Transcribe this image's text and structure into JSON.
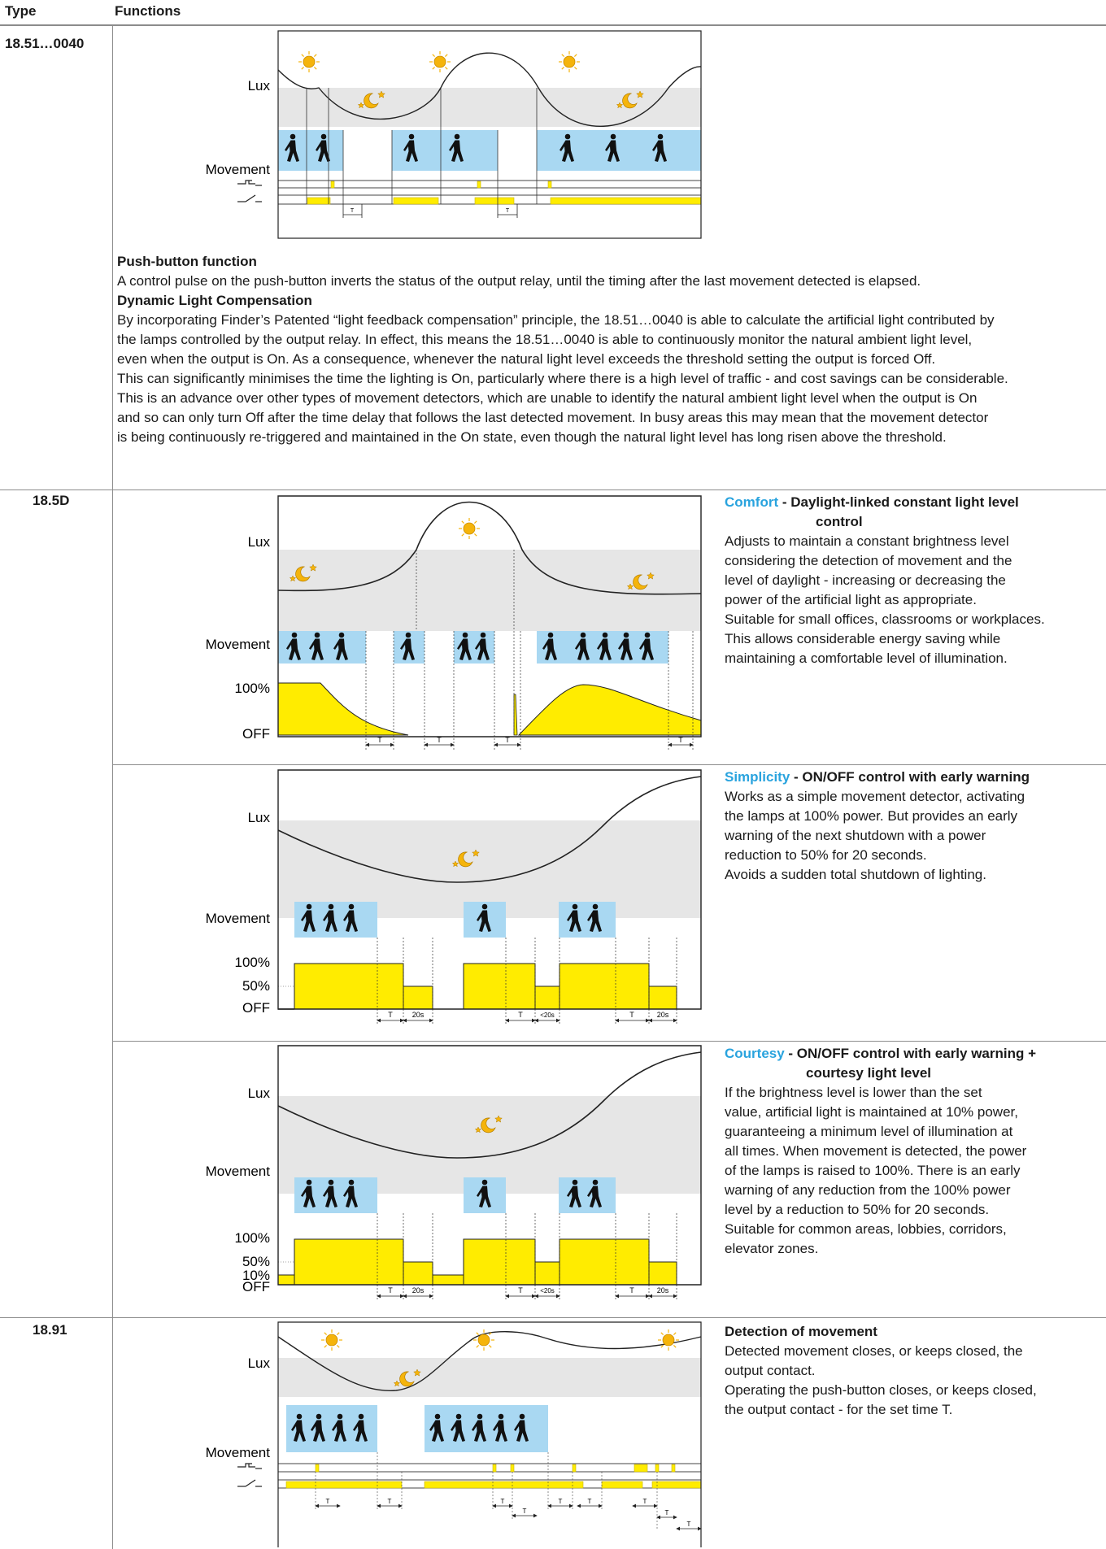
{
  "header": {
    "type_label": "Type",
    "functions_label": "Functions"
  },
  "rows": [
    {
      "type": "18.51…0040",
      "sections": [
        {
          "heading": "Push-button function",
          "body": "A control pulse on the push-button inverts the status of the output relay, until the timing after the last movement detected is elapsed."
        },
        {
          "heading": "Dynamic Light Compensation",
          "lines": [
            "By incorporating Finder’s Patented “light feedback compensation” principle, the 18.51…0040 is able to calculate the artificial light contributed by",
            "the lamps controlled by the output relay. In effect, this means the 18.51…0040 is able to continuously monitor the natural ambient light level,",
            "even when the output is On. As a consequence, whenever the natural light level exceeds the threshold setting the output is forced Off.",
            "This can significantly minimises the time the lighting is On, particularly where there is a high level of traffic - and cost savings can be considerable.",
            "This is an advance over other types of movement detectors, which are unable to identify the natural ambient light level when the output is On",
            "and so can only turn Off after the time delay that follows the last detected movement. In busy areas this may mean that the movement detector",
            "is being continuously re-triggered and maintained in the On state, even though the natural light level has long risen above the threshold."
          ]
        }
      ]
    },
    {
      "type": "18.5D",
      "modes": [
        {
          "name": "Comfort",
          "title_rest": " - Daylight-linked constant light level",
          "title_cont": "control",
          "lines": [
            "Adjusts to maintain a constant brightness level",
            "considering the detection of movement and the",
            "level of daylight - increasing or decreasing the",
            "power of the artificial light as appropriate.",
            "Suitable for small offices, classrooms or workplaces.",
            "This allows considerable energy saving while",
            "maintaining a comfortable level of illumination."
          ]
        },
        {
          "name": "Simplicity",
          "title_rest": " - ON/OFF control with early warning",
          "title_cont": "",
          "lines": [
            "Works as a simple movement detector, activating",
            "the lamps at 100% power. But provides an early",
            "warning of the next shutdown with a power",
            "reduction to 50% for 20 seconds.",
            "Avoids a sudden total shutdown of lighting."
          ]
        },
        {
          "name": "Courtesy",
          "title_rest": " - ON/OFF control with early warning +",
          "title_cont": "courtesy light level",
          "lines": [
            "If the brightness level is lower than the set",
            "value, artificial light is maintained at 10% power,",
            "guaranteeing a minimum level of illumination at",
            "all times.  When movement is detected, the power",
            "of the lamps is raised to 100%. There is an early",
            "warning of any reduction from the 100% power",
            "level by a reduction to 50% for 20 seconds.",
            "Suitable for common areas, lobbies, corridors,",
            "elevator zones."
          ]
        }
      ]
    },
    {
      "type": "18.91",
      "title": "Detection of movement",
      "lines": [
        "Detected movement closes, or keeps closed, the",
        "output contact.",
        "Operating the push-button closes, or keeps closed,",
        "the output contact - for the set time T."
      ]
    }
  ],
  "diagram_labels": {
    "lux": "Lux",
    "movement": "Movement",
    "p100": "100%",
    "p50": "50%",
    "p10": "10%",
    "off": "OFF",
    "t": "T",
    "s20": "20s",
    "lt20": "<20s"
  },
  "colors": {
    "movement_band": "#a9d8f2",
    "output": "#ffec00",
    "output_stroke": "#c9b400",
    "lux_band": "#e6e6e6",
    "sun": "#f5b40b",
    "accent": "#29a3de"
  }
}
